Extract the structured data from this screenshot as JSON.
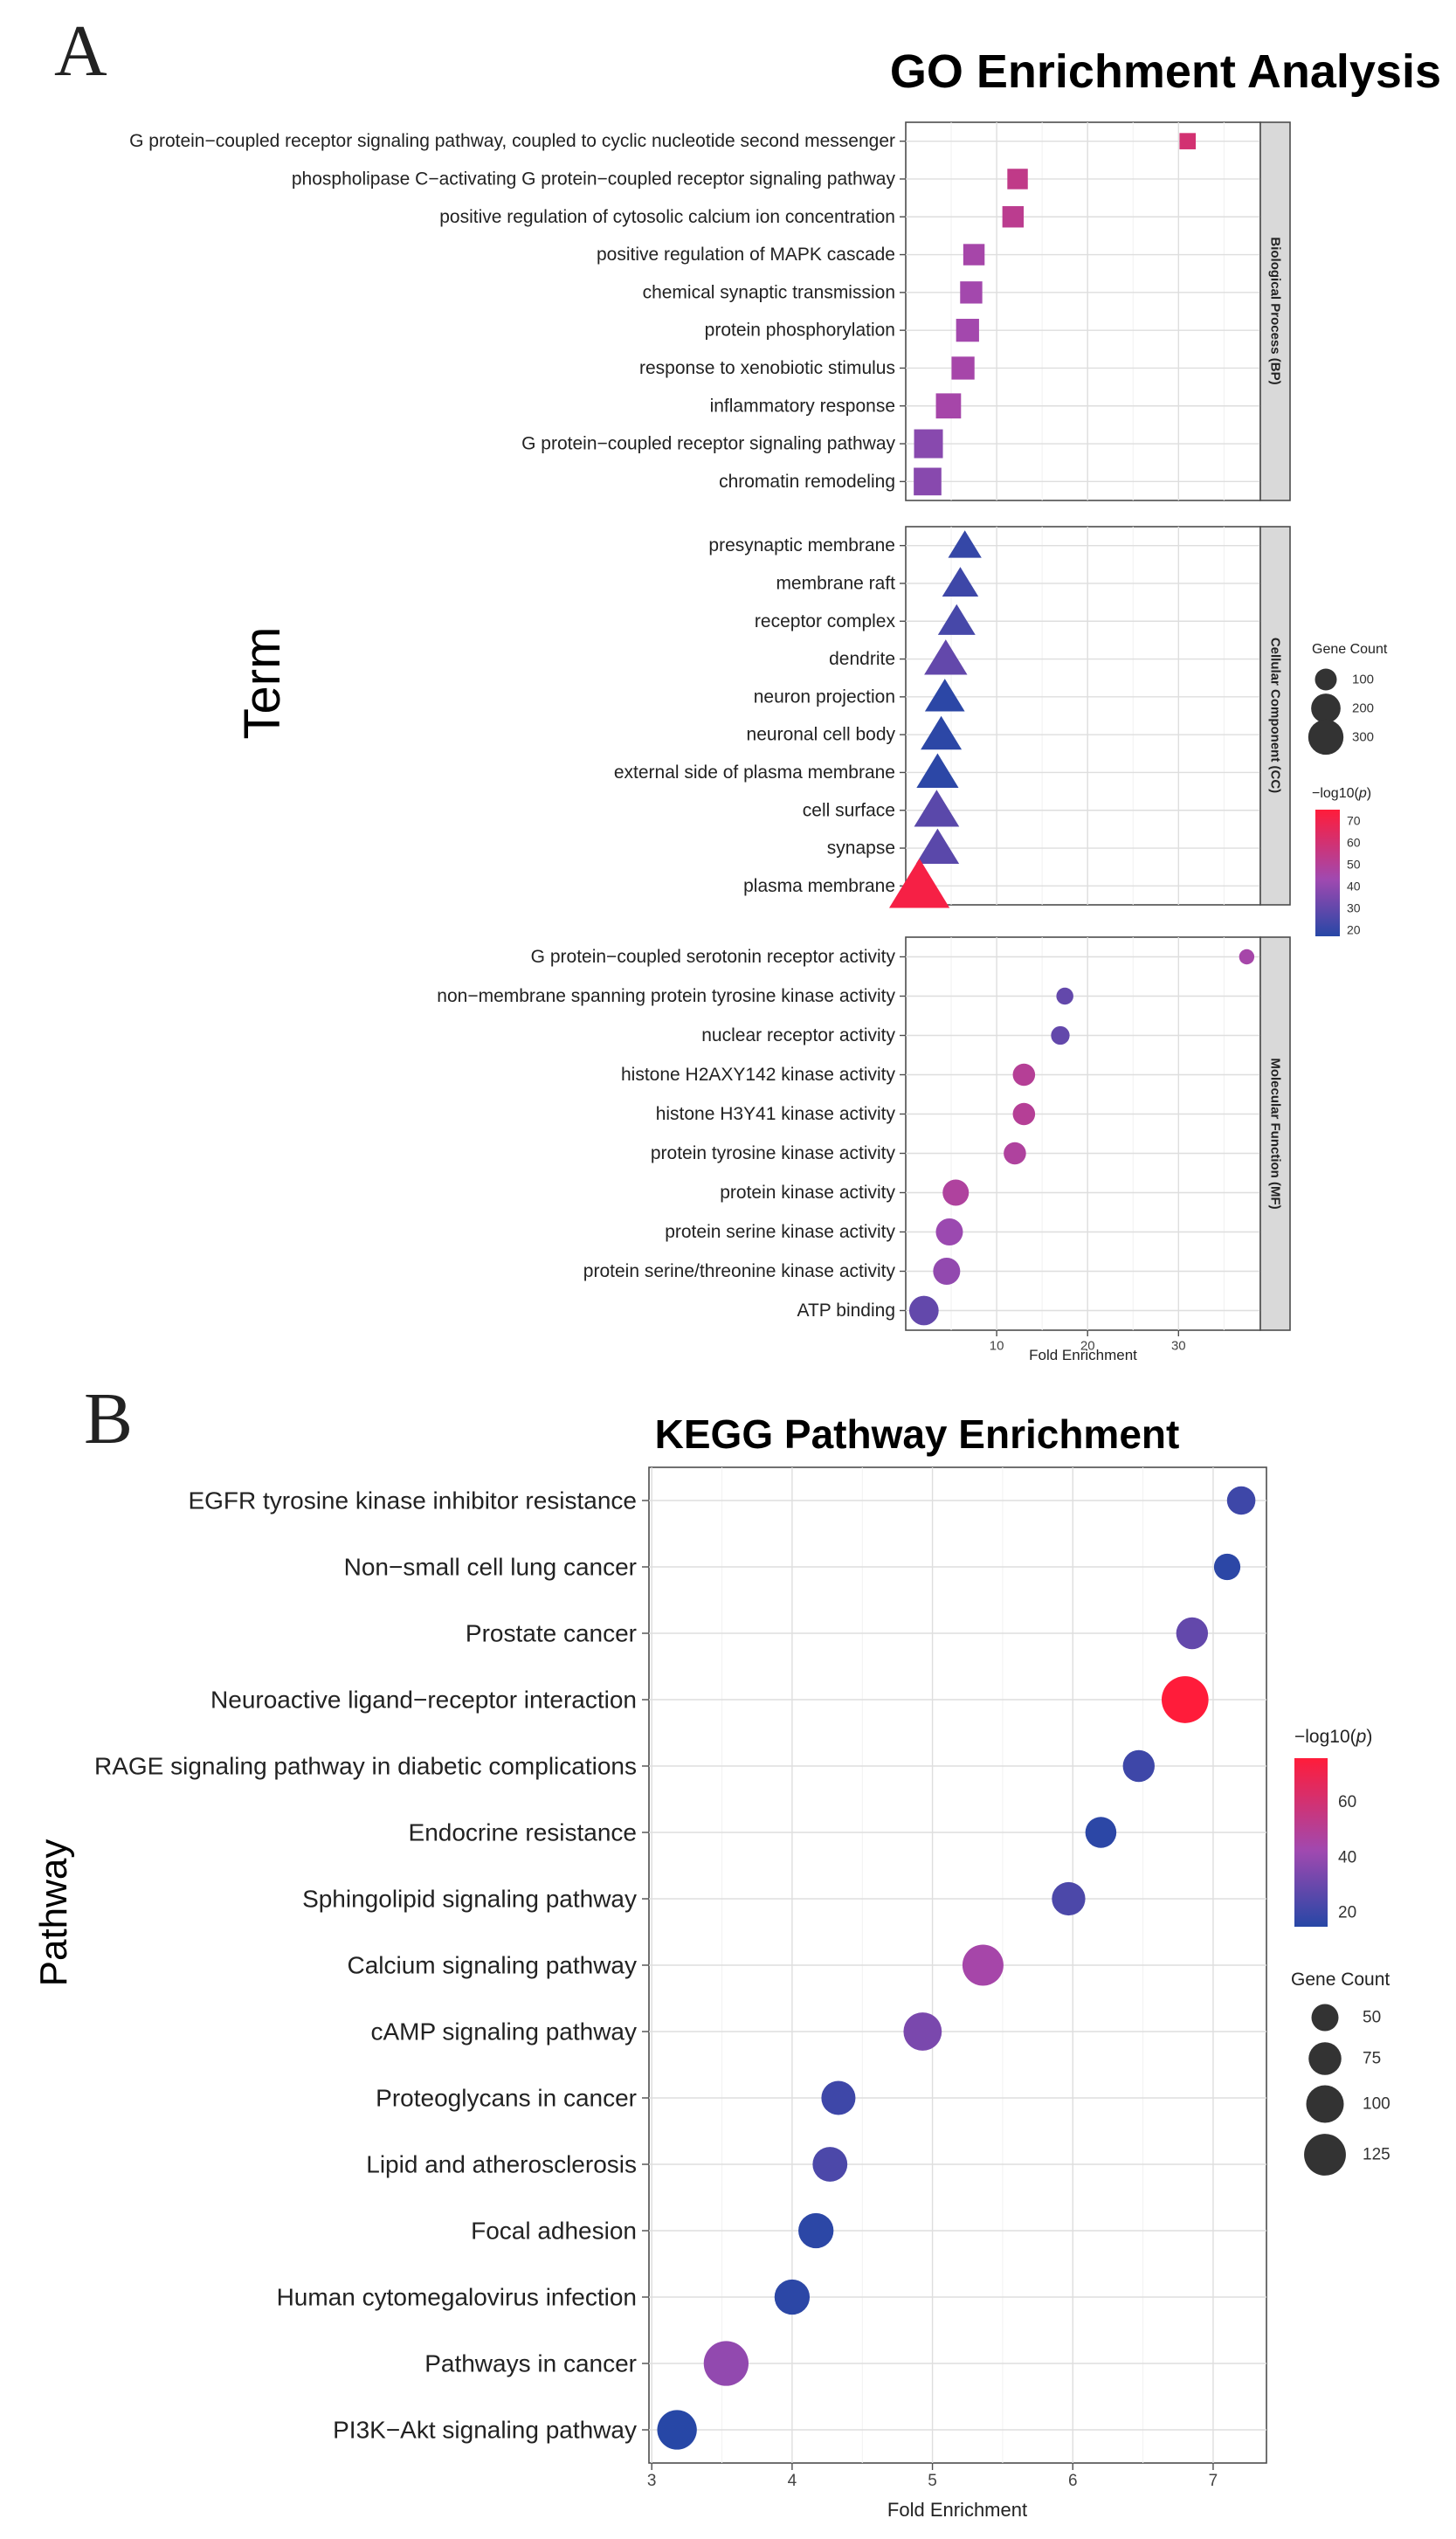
{
  "panel_a": {
    "letter": "A",
    "y_axis_title": "Term",
    "legend_size": {
      "title": "Gene Count",
      "labels": [
        "100",
        "200",
        "300"
      ]
    },
    "legend_color": {
      "title": "−log10(",
      "title_italic": "p",
      "title_end": ")",
      "labels": [
        "70",
        "60",
        "50",
        "40",
        "30",
        "20"
      ]
    }
  },
  "panel_b": {
    "letter": "B",
    "y_axis_title": "Pathway",
    "legend_color": {
      "title": "−log10(",
      "title_italic": "p",
      "title_end": ")",
      "labels": [
        "60",
        "40",
        "20"
      ]
    },
    "legend_size": {
      "title": "Gene Count",
      "labels": [
        "50",
        "75",
        "100",
        "125"
      ]
    }
  },
  "chart_data": [
    {
      "type": "scatter",
      "title": "GO Enrichment Analysis",
      "xlabel": "Fold Enrichment",
      "ylabel": "Term",
      "xlim": [
        0,
        39
      ],
      "xticks": [
        "10",
        "20",
        "30"
      ],
      "size_legend": "Gene Count",
      "color_legend": "-log10(p)",
      "colors": {
        "low": "#2747a6",
        "mid": "#a049b0",
        "high": "#ff1c3a"
      },
      "facets": [
        {
          "name": "Biological Process (BP)",
          "marker": "square",
          "terms": [
            "G protein−coupled receptor signaling pathway, coupled to cyclic nucleotide second messenger",
            "phospholipase C−activating G protein−coupled receptor signaling pathway",
            "positive regulation of cytosolic calcium ion concentration",
            "positive regulation of MAPK cascade",
            "chemical synaptic transmission",
            "protein phosphorylation",
            "response to xenobiotic stimulus",
            "inflammatory response",
            "G protein−coupled receptor signaling pathway",
            "chromatin remodeling"
          ],
          "fold_enrichment": [
            31.0,
            12.3,
            11.8,
            7.5,
            7.2,
            6.8,
            6.3,
            4.7,
            2.5,
            2.4
          ],
          "neg_log10_p": [
            60,
            54,
            52,
            45,
            44,
            44,
            45,
            45,
            38,
            38
          ],
          "gene_count": [
            40,
            80,
            90,
            90,
            100,
            110,
            110,
            140,
            200,
            180
          ]
        },
        {
          "name": "Cellular Component (CC)",
          "marker": "triangle",
          "terms": [
            "presynaptic membrane",
            "membrane raft",
            "receptor complex",
            "dendrite",
            "neuron projection",
            "neuronal cell body",
            "external side of plasma membrane",
            "cell surface",
            "synapse",
            "plasma membrane"
          ],
          "fold_enrichment": [
            6.5,
            6.0,
            5.6,
            4.4,
            4.3,
            3.9,
            3.5,
            3.4,
            3.5,
            1.5
          ],
          "neg_log10_p": [
            20,
            22,
            24,
            30,
            18,
            18,
            18,
            28,
            28,
            72
          ],
          "gene_count": [
            80,
            100,
            110,
            160,
            130,
            140,
            150,
            180,
            160,
            370
          ]
        },
        {
          "name": "Molecular Function (MF)",
          "marker": "circle",
          "terms": [
            "G protein−coupled serotonin receptor activity",
            "non−membrane spanning protein tyrosine kinase activity",
            "nuclear receptor activity",
            "histone H2AXY142 kinase activity",
            "histone H3Y41 kinase activity",
            "protein tyrosine kinase activity",
            "protein kinase activity",
            "protein serine kinase activity",
            "protein serine/threonine kinase activity",
            "ATP binding"
          ],
          "fold_enrichment": [
            37.5,
            17.5,
            17.0,
            13.0,
            13.0,
            12.0,
            5.5,
            4.8,
            4.5,
            2.0
          ],
          "neg_log10_p": [
            45,
            30,
            30,
            50,
            50,
            48,
            48,
            42,
            40,
            30
          ],
          "gene_count": [
            20,
            30,
            40,
            70,
            70,
            70,
            110,
            120,
            120,
            150
          ]
        }
      ]
    },
    {
      "type": "scatter",
      "title": "KEGG Pathway Enrichment",
      "xlabel": "Fold Enrichment",
      "ylabel": "Pathway",
      "xlim": [
        2.98,
        7.38
      ],
      "xticks": [
        3,
        4,
        5,
        6,
        7
      ],
      "size_legend": "Gene Count",
      "color_legend": "-log10(p)",
      "colors": {
        "low": "#2747a6",
        "mid": "#a049b0",
        "high": "#ff1c3a"
      },
      "categories": [
        "EGFR tyrosine kinase inhibitor resistance",
        "Non−small cell lung cancer",
        "Prostate cancer",
        "Neuroactive ligand−receptor interaction",
        "RAGE signaling pathway in diabetic complications",
        "Endocrine resistance",
        "Sphingolipid signaling pathway",
        "Calcium signaling pathway",
        "cAMP signaling pathway",
        "Proteoglycans in cancer",
        "Lipid and atherosclerosis",
        "Focal adhesion",
        "Human cytomegalovirus infection",
        "Pathways in cancer",
        "PI3K−Akt signaling pathway"
      ],
      "fold_enrichment": [
        7.2,
        7.1,
        6.85,
        6.8,
        6.47,
        6.2,
        5.97,
        5.36,
        4.93,
        4.33,
        4.27,
        4.17,
        4.0,
        3.53,
        3.18
      ],
      "neg_log10_p": [
        22,
        18,
        30,
        75,
        22,
        18,
        25,
        45,
        35,
        22,
        25,
        18,
        18,
        40,
        17
      ],
      "gene_count": [
        42,
        35,
        55,
        135,
        55,
        52,
        62,
        100,
        85,
        65,
        68,
        70,
        70,
        122,
        92
      ]
    }
  ]
}
